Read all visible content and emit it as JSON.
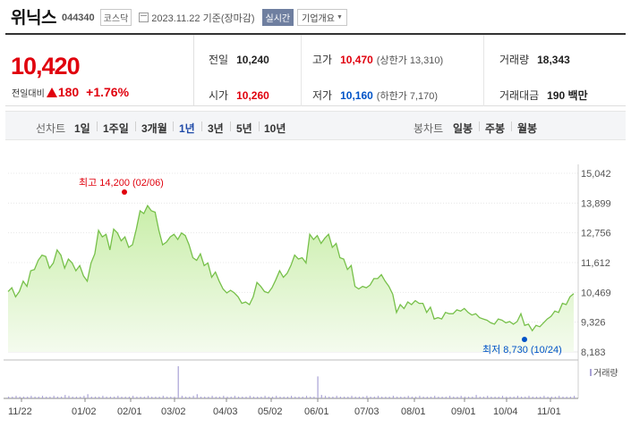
{
  "header": {
    "name": "위닉스",
    "code": "044340",
    "market": "코스닥",
    "date": "2023.11.22 기준(장마감)",
    "realtime_label": "실시간",
    "company_label": "기업개요"
  },
  "price": {
    "current": "10,420",
    "change_label": "전일대비",
    "change": "180",
    "change_pct": "+1.76%"
  },
  "stats": {
    "prev_label": "전일",
    "prev": "10,240",
    "open_label": "시가",
    "open": "10,260",
    "high_label": "고가",
    "high": "10,470",
    "upper_limit": "(상한가 13,310)",
    "low_label": "저가",
    "low": "10,160",
    "lower_limit": "(하한가 7,170)",
    "volume_label": "거래량",
    "volume": "18,343",
    "amount_label": "거래대금",
    "amount": "190 백만"
  },
  "periods": {
    "line_label": "선차트",
    "line_items": [
      "1일",
      "1주일",
      "3개월",
      "1년",
      "3년",
      "5년",
      "10년"
    ],
    "active": "1년",
    "candle_label": "봉차트",
    "candle_items": [
      "일봉",
      "주봉",
      "월봉"
    ]
  },
  "colors": {
    "up": "#e0000d",
    "down": "#0053c7",
    "line": "#77c04a",
    "fill": "#dff5cc",
    "volume": "#a9a2d6"
  },
  "chart_data": {
    "type": "area",
    "y_ticks": [
      "15,042",
      "13,899",
      "12,756",
      "11,612",
      "10,469",
      "9,326",
      "8,183"
    ],
    "ylim": [
      8183,
      15042
    ],
    "x_ticks": [
      "11/22",
      "01/02",
      "02/01",
      "03/02",
      "04/03",
      "05/02",
      "06/01",
      "07/03",
      "08/01",
      "09/01",
      "10/04",
      "11/01"
    ],
    "high_annotation": "최고 14,200 (02/06)",
    "low_annotation": "최저 8,730 (10/24)",
    "high_value": 14200,
    "low_value": 8730,
    "volume_legend": "거래량",
    "series": [
      {
        "values": [
          10500,
          10650,
          10300,
          10500,
          10900,
          10700,
          11300,
          11350,
          11700,
          11900,
          11850,
          11400,
          11600,
          12100,
          11900,
          11400,
          11750,
          11600,
          11300,
          11500,
          11100,
          10900,
          11600,
          11950,
          12850,
          12600,
          12700,
          12100,
          12900,
          12750,
          12450,
          12600,
          12200,
          12300,
          12900,
          13600,
          13500,
          13800,
          13600,
          13550,
          12850,
          12300,
          12400,
          12600,
          12700,
          12500,
          12750,
          12650,
          12300,
          11800,
          11700,
          11950,
          11500,
          11600,
          11050,
          11250,
          10900,
          10600,
          10450,
          10550,
          10450,
          10300,
          10050,
          10100,
          10000,
          10300,
          10850,
          10700,
          10500,
          10450,
          10650,
          10950,
          11300,
          11050,
          11200,
          11500,
          11900,
          11750,
          11800,
          11600,
          12700,
          12500,
          12650,
          12350,
          12550,
          12700,
          12200,
          12350,
          11800,
          11750,
          11350,
          11500,
          10700,
          10600,
          10700,
          10650,
          10750,
          11000,
          11000,
          11150,
          10900,
          10700,
          10400,
          9700,
          10000,
          9850,
          10100,
          10000,
          10150,
          10050,
          10050,
          9700,
          9900,
          9450,
          9500,
          9450,
          9700,
          9650,
          9650,
          9800,
          9750,
          9850,
          9700,
          9600,
          9650,
          9500,
          9450,
          9400,
          9300,
          9250,
          9450,
          9400,
          9300,
          9350,
          9250,
          9350,
          9650,
          9200,
          9250,
          9000,
          9200,
          9150,
          9300,
          9450,
          9550,
          9750,
          9700,
          10050,
          10000,
          10300,
          10420
        ]
      }
    ],
    "volume": [
      2,
      2,
      3,
      2,
      2,
      2,
      3,
      2,
      2,
      3,
      2,
      2,
      3,
      2,
      2,
      4,
      3,
      2,
      2,
      2,
      3,
      5,
      2,
      2,
      2,
      3,
      2,
      2,
      2,
      3,
      2,
      2,
      2,
      3,
      2,
      2,
      2,
      3,
      2,
      2,
      2,
      3,
      2,
      2,
      2,
      38,
      3,
      2,
      2,
      3,
      5,
      2,
      2,
      2,
      3,
      2,
      2,
      3,
      2,
      2,
      3,
      2,
      2,
      2,
      3,
      2,
      2,
      2,
      3,
      2,
      2,
      3,
      2,
      2,
      2,
      3,
      2,
      2,
      2,
      3,
      2,
      2,
      26,
      4,
      3,
      2,
      2,
      3,
      2,
      2,
      2,
      3,
      2,
      2,
      2,
      3,
      2,
      2,
      3,
      2,
      2,
      2,
      3,
      2,
      2,
      2,
      3,
      2,
      2,
      3,
      2,
      2,
      2,
      3,
      2,
      2,
      2,
      3,
      2,
      2,
      3,
      2,
      2,
      2,
      4,
      2,
      2,
      3,
      2,
      2,
      2,
      3,
      2,
      2,
      2,
      3,
      2,
      2,
      3,
      2,
      2,
      2,
      3,
      2,
      2,
      2,
      3,
      2,
      2,
      2,
      3
    ]
  }
}
